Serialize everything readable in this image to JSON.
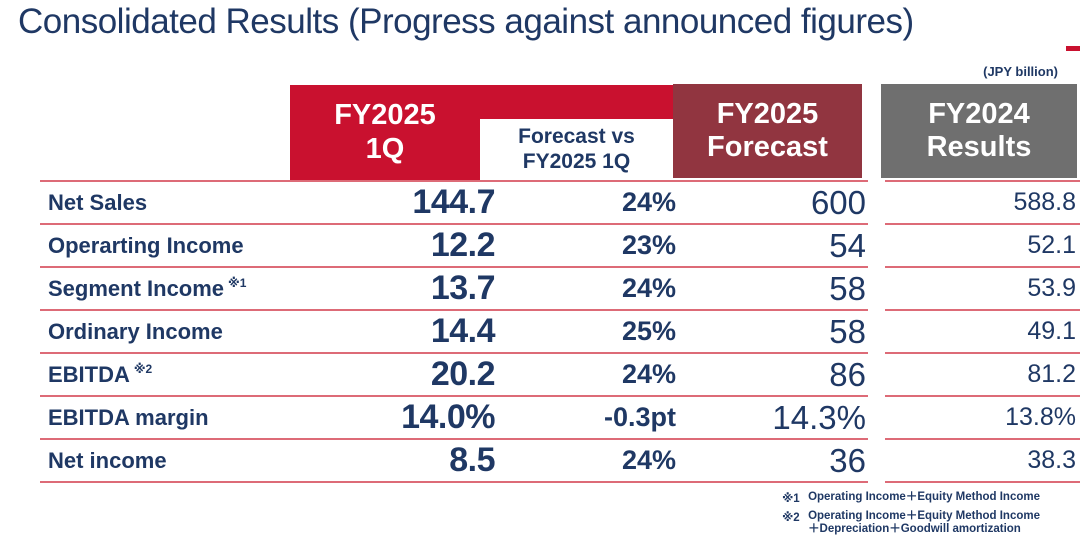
{
  "title": "Consolidated Results (Progress against announced figures)",
  "unit_note": "(JPY billion)",
  "colors": {
    "accent_red": "#c9112f",
    "maroon": "#913540",
    "gray": "#6f6f6f",
    "navy_text": "#1f3864",
    "separator_line": "#dd6b77"
  },
  "table": {
    "columns": [
      {
        "id": "fy2025-1q",
        "line1": "FY2025",
        "line2": "1Q"
      },
      {
        "id": "forecast-vs-1q",
        "line1": "Forecast vs",
        "line2": "FY2025 1Q"
      },
      {
        "id": "fy2025-forecast",
        "line1": "FY2025",
        "line2": "Forecast"
      },
      {
        "id": "fy2024-results",
        "line1": "FY2024",
        "line2": "Results"
      }
    ],
    "rows": [
      {
        "label": "Net Sales",
        "sup": "",
        "q1": "144.7",
        "vs": "24%",
        "fc": "600",
        "py": "588.8"
      },
      {
        "label": "Operarting Income",
        "sup": "",
        "q1": "12.2",
        "vs": "23%",
        "fc": "54",
        "py": "52.1"
      },
      {
        "label": "Segment Income",
        "sup": "※1",
        "q1": "13.7",
        "vs": "24%",
        "fc": "58",
        "py": "53.9"
      },
      {
        "label": "Ordinary Income",
        "sup": "",
        "q1": "14.4",
        "vs": "25%",
        "fc": "58",
        "py": "49.1"
      },
      {
        "label": "EBITDA",
        "sup": "※2",
        "q1": "20.2",
        "vs": "24%",
        "fc": "86",
        "py": "81.2"
      },
      {
        "label": "EBITDA margin",
        "sup": "",
        "q1": "14.0%",
        "vs": "-0.3pt",
        "fc": "14.3%",
        "py": "13.8%"
      },
      {
        "label": "Net income",
        "sup": "",
        "q1": "8.5",
        "vs": "24%",
        "fc": "36",
        "py": "38.3"
      }
    ]
  },
  "footnotes": [
    {
      "mark": "※1",
      "line1": "Operating Income＋Equity Method Income",
      "line2": ""
    },
    {
      "mark": "※2",
      "line1": "Operating Income＋Equity Method Income",
      "line2": "＋Depreciation＋Goodwill amortization"
    }
  ]
}
